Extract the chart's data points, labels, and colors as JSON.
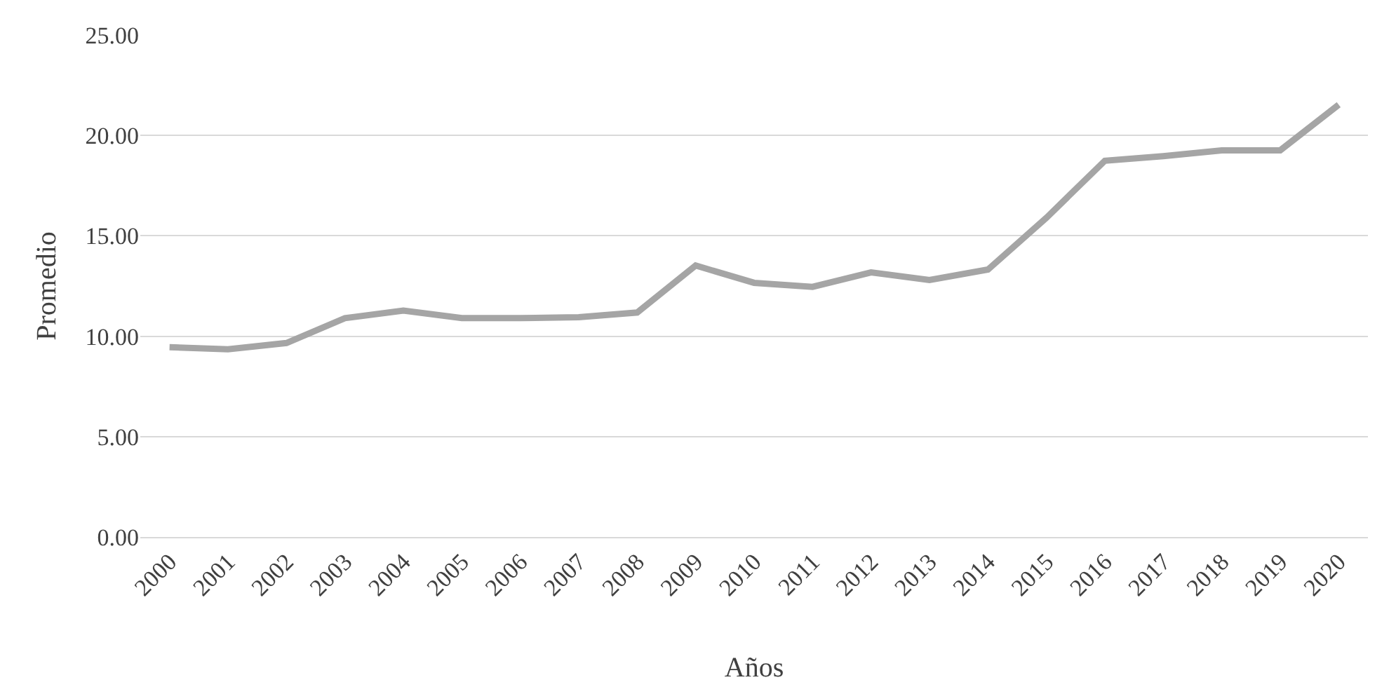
{
  "chart_data": {
    "type": "line",
    "xlabel": "Años",
    "ylabel": "Promedio",
    "categories": [
      "2000",
      "2001",
      "2002",
      "2003",
      "2004",
      "2005",
      "2006",
      "2007",
      "2008",
      "2009",
      "2010",
      "2011",
      "2012",
      "2013",
      "2014",
      "2015",
      "2016",
      "2017",
      "2018",
      "2019",
      "2020"
    ],
    "series": [
      {
        "color": "#a5a5a5",
        "values": [
          9.45,
          9.35,
          9.66,
          10.9,
          11.28,
          10.9,
          10.9,
          10.95,
          11.18,
          13.52,
          12.66,
          12.46,
          13.18,
          12.8,
          13.32,
          15.9,
          18.74,
          18.97,
          19.26,
          19.26,
          21.53
        ]
      }
    ],
    "ylim": [
      0,
      25
    ],
    "yticks": [
      {
        "value": 0,
        "label": "0.00"
      },
      {
        "value": 5,
        "label": "5.00"
      },
      {
        "value": 10,
        "label": "10.00"
      },
      {
        "value": 15,
        "label": "15.00"
      },
      {
        "value": 20,
        "label": "20.00"
      },
      {
        "value": 25,
        "label": "25.00"
      }
    ],
    "grid": "y",
    "marker": "none",
    "line_style": "solid"
  }
}
